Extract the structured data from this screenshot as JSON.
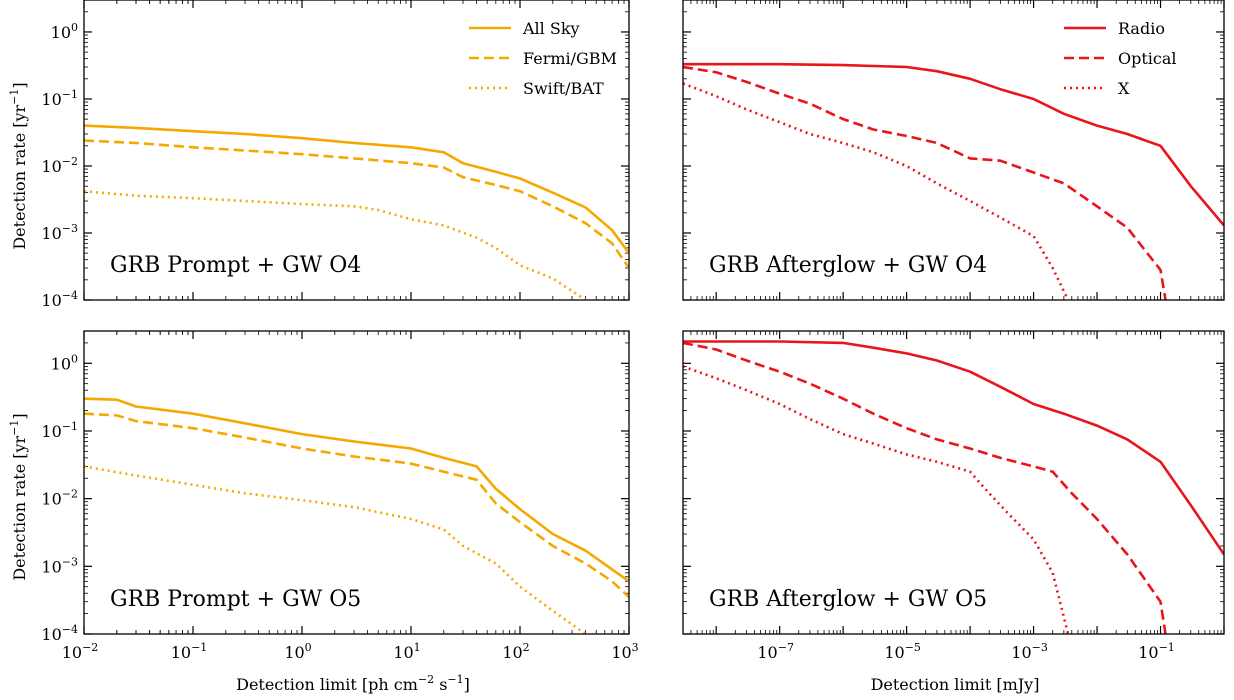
{
  "figure": {
    "ylabel": "Detection rate [yr",
    "ylabel_exp": "−1",
    "ylabel_close": "]",
    "xlabel_left": {
      "prefix": "Detection limit  [ph cm",
      "exp1": "−2",
      "mid": " s",
      "exp2": "−1",
      "suffix": "]"
    },
    "xlabel_right": "Detection limit  [mJy]"
  },
  "colors": {
    "prompt": "#f5a800",
    "afterglow": "#e8151b",
    "axis": "#000000"
  },
  "chart_data": [
    {
      "type": "line",
      "label": "GRB Prompt + GW O4",
      "xscale": "log",
      "yscale": "log",
      "xlim": [
        0.01,
        1000
      ],
      "ylim": [
        0.0001,
        3
      ],
      "show_xticklabels": false,
      "legend": "top-right",
      "color": "#f5a800",
      "series": [
        {
          "name": "All Sky",
          "style": "solid",
          "x": [
            0.01,
            0.03,
            0.1,
            0.3,
            1,
            3,
            10,
            20,
            30,
            60,
            100,
            200,
            400,
            700,
            1000
          ],
          "y": [
            0.04,
            0.037,
            0.033,
            0.03,
            0.026,
            0.022,
            0.019,
            0.016,
            0.011,
            0.0082,
            0.0065,
            0.004,
            0.0024,
            0.0011,
            0.0005
          ]
        },
        {
          "name": "Fermi/GBM",
          "style": "dashed",
          "x": [
            0.01,
            0.03,
            0.1,
            0.3,
            1,
            3,
            10,
            20,
            30,
            60,
            100,
            200,
            400,
            700,
            1000
          ],
          "y": [
            0.024,
            0.022,
            0.019,
            0.017,
            0.015,
            0.013,
            0.011,
            0.0095,
            0.0068,
            0.0052,
            0.0042,
            0.0025,
            0.0014,
            0.0007,
            0.0003
          ]
        },
        {
          "name": "Swift/BAT",
          "style": "dotted",
          "x": [
            0.01,
            0.03,
            0.1,
            0.3,
            1,
            3,
            5,
            10,
            20,
            40,
            60,
            100,
            200,
            400
          ],
          "y": [
            0.0042,
            0.0036,
            0.0033,
            0.003,
            0.0027,
            0.0025,
            0.0022,
            0.0016,
            0.0013,
            0.00085,
            0.0006,
            0.00033,
            0.00021,
            0.0001
          ]
        }
      ]
    },
    {
      "type": "line",
      "label": "GRB Afterglow + GW O4",
      "xscale": "log",
      "yscale": "log",
      "xlim": [
        3e-09,
        1
      ],
      "ylim": [
        0.0001,
        3
      ],
      "show_xticklabels": false,
      "show_yticklabels": false,
      "legend": "top-right",
      "color": "#e8151b",
      "series": [
        {
          "name": "Radio",
          "style": "solid",
          "x": [
            3e-09,
            1e-07,
            1e-06,
            1e-05,
            3e-05,
            0.0001,
            0.0003,
            0.001,
            0.003,
            0.01,
            0.03,
            0.1,
            0.3,
            1
          ],
          "y": [
            0.33,
            0.33,
            0.32,
            0.3,
            0.26,
            0.2,
            0.14,
            0.1,
            0.06,
            0.04,
            0.03,
            0.02,
            0.005,
            0.0013
          ]
        },
        {
          "name": "Optical",
          "style": "dashed",
          "x": [
            3e-09,
            1e-08,
            3e-08,
            1e-07,
            3e-07,
            1e-06,
            3e-06,
            1e-05,
            3e-05,
            0.0001,
            0.0003,
            0.001,
            0.003,
            0.01,
            0.03,
            0.1,
            0.12
          ],
          "y": [
            0.3,
            0.25,
            0.18,
            0.12,
            0.085,
            0.05,
            0.035,
            0.028,
            0.022,
            0.013,
            0.012,
            0.008,
            0.0055,
            0.0025,
            0.0012,
            0.00028,
            0.0001
          ]
        },
        {
          "name": "X",
          "style": "dotted",
          "x": [
            3e-09,
            1e-08,
            3e-08,
            1e-07,
            3e-07,
            1e-06,
            3e-06,
            1e-05,
            3e-05,
            0.0001,
            0.0003,
            0.001,
            0.002,
            0.0035
          ],
          "y": [
            0.17,
            0.11,
            0.07,
            0.045,
            0.03,
            0.022,
            0.016,
            0.01,
            0.0055,
            0.003,
            0.0017,
            0.0009,
            0.0003,
            0.0001
          ]
        }
      ]
    },
    {
      "type": "line",
      "label": "GRB Prompt + GW O5",
      "xscale": "log",
      "yscale": "log",
      "xlim": [
        0.01,
        1000
      ],
      "ylim": [
        0.0001,
        3
      ],
      "xticks": [
        "10",
        "10",
        "10",
        "10",
        "10",
        "10"
      ],
      "xtick_exps": [
        "−2",
        "−1",
        "0",
        "1",
        "2",
        "3"
      ],
      "color": "#f5a800",
      "series": [
        {
          "name": "All Sky",
          "style": "solid",
          "x": [
            0.01,
            0.02,
            0.03,
            0.1,
            0.3,
            1,
            3,
            10,
            20,
            40,
            60,
            100,
            200,
            400,
            700,
            1000
          ],
          "y": [
            0.3,
            0.29,
            0.23,
            0.18,
            0.13,
            0.09,
            0.07,
            0.055,
            0.04,
            0.03,
            0.014,
            0.007,
            0.003,
            0.0017,
            0.0009,
            0.0006
          ]
        },
        {
          "name": "Fermi/GBM",
          "style": "dashed",
          "x": [
            0.01,
            0.02,
            0.03,
            0.1,
            0.3,
            1,
            3,
            10,
            20,
            40,
            60,
            100,
            200,
            400,
            700,
            1000
          ],
          "y": [
            0.18,
            0.17,
            0.14,
            0.11,
            0.08,
            0.055,
            0.042,
            0.033,
            0.025,
            0.019,
            0.0085,
            0.0045,
            0.002,
            0.0011,
            0.0006,
            0.00035
          ]
        },
        {
          "name": "Swift/BAT",
          "style": "dotted",
          "x": [
            0.01,
            0.03,
            0.1,
            0.3,
            1,
            3,
            10,
            20,
            30,
            60,
            100,
            200,
            400
          ],
          "y": [
            0.03,
            0.022,
            0.016,
            0.012,
            0.0095,
            0.0075,
            0.005,
            0.0035,
            0.002,
            0.0011,
            0.0005,
            0.00022,
            0.0001
          ]
        }
      ]
    },
    {
      "type": "line",
      "label": "GRB Afterglow + GW O5",
      "xscale": "log",
      "yscale": "log",
      "xlim": [
        3e-09,
        1
      ],
      "ylim": [
        0.0001,
        3
      ],
      "show_yticklabels": false,
      "xticks": [
        "10",
        "10",
        "10",
        "10"
      ],
      "xtick_exps": [
        "−7",
        "−5",
        "−3",
        "−1"
      ],
      "color": "#e8151b",
      "series": [
        {
          "name": "Radio",
          "style": "solid",
          "x": [
            3e-09,
            1e-07,
            1e-06,
            3e-06,
            1e-05,
            3e-05,
            0.0001,
            0.0003,
            0.001,
            0.003,
            0.01,
            0.03,
            0.1,
            0.3,
            1
          ],
          "y": [
            2.1,
            2.1,
            2.0,
            1.7,
            1.4,
            1.1,
            0.75,
            0.45,
            0.25,
            0.18,
            0.12,
            0.075,
            0.035,
            0.008,
            0.0015
          ]
        },
        {
          "name": "Optical",
          "style": "dashed",
          "x": [
            3e-09,
            1e-08,
            3e-08,
            1e-07,
            3e-07,
            1e-06,
            3e-06,
            1e-05,
            3e-05,
            0.0001,
            0.0003,
            0.001,
            0.002,
            0.004,
            0.01,
            0.03,
            0.1,
            0.12
          ],
          "y": [
            2.0,
            1.6,
            1.1,
            0.75,
            0.5,
            0.3,
            0.18,
            0.11,
            0.075,
            0.055,
            0.04,
            0.03,
            0.025,
            0.012,
            0.005,
            0.0015,
            0.0003,
            0.0001
          ]
        },
        {
          "name": "X",
          "style": "dotted",
          "x": [
            3e-09,
            1e-08,
            3e-08,
            1e-07,
            3e-07,
            1e-06,
            3e-06,
            1e-05,
            3e-05,
            0.0001,
            0.0002,
            0.0004,
            0.001,
            0.002,
            0.0035
          ],
          "y": [
            0.9,
            0.6,
            0.4,
            0.25,
            0.15,
            0.09,
            0.065,
            0.045,
            0.035,
            0.025,
            0.012,
            0.006,
            0.0025,
            0.0008,
            0.0001
          ]
        }
      ]
    }
  ]
}
